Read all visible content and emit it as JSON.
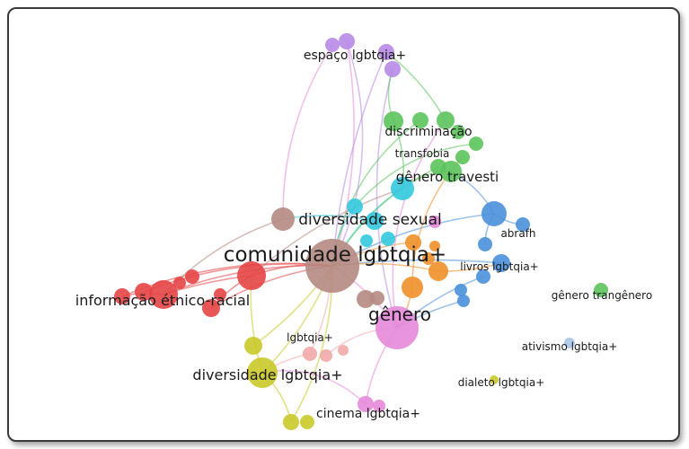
{
  "network": {
    "colors": {
      "brown": "#b58a82",
      "pink": "#e58ad9",
      "red": "#e64545",
      "yellow": "#c9c92a",
      "green": "#5cc45c",
      "cyan": "#33c9de",
      "blue": "#4a90d9",
      "orange": "#f0902a",
      "purple": "#b78ae6",
      "lightpink": "#f2a9a9",
      "lightblue": "#a9c4e8"
    },
    "labels": {
      "comunidade": "comunidade lgbtqia+",
      "diversidade_sexual": "diversidade sexual",
      "genero": "gênero",
      "informacao": "informação étnico-racial",
      "diversidade_lgbtqia": "diversidade lgbtqia+",
      "lgbtqia": "lgbtqia+",
      "cinema": "cinema lgbtqia+",
      "espaco": "espaço lgbtqia+",
      "discriminacao": "discriminação",
      "transfobia": "transfobia",
      "genero_travesti": "gênero travesti",
      "abrafh": "abrafh",
      "livros": "livros lgbtqia+",
      "genero_trangenero": "gênero trangênero",
      "ativismo": "ativismo lgbtqia+",
      "dialeto": "dialeto lgbtqia+"
    }
  }
}
